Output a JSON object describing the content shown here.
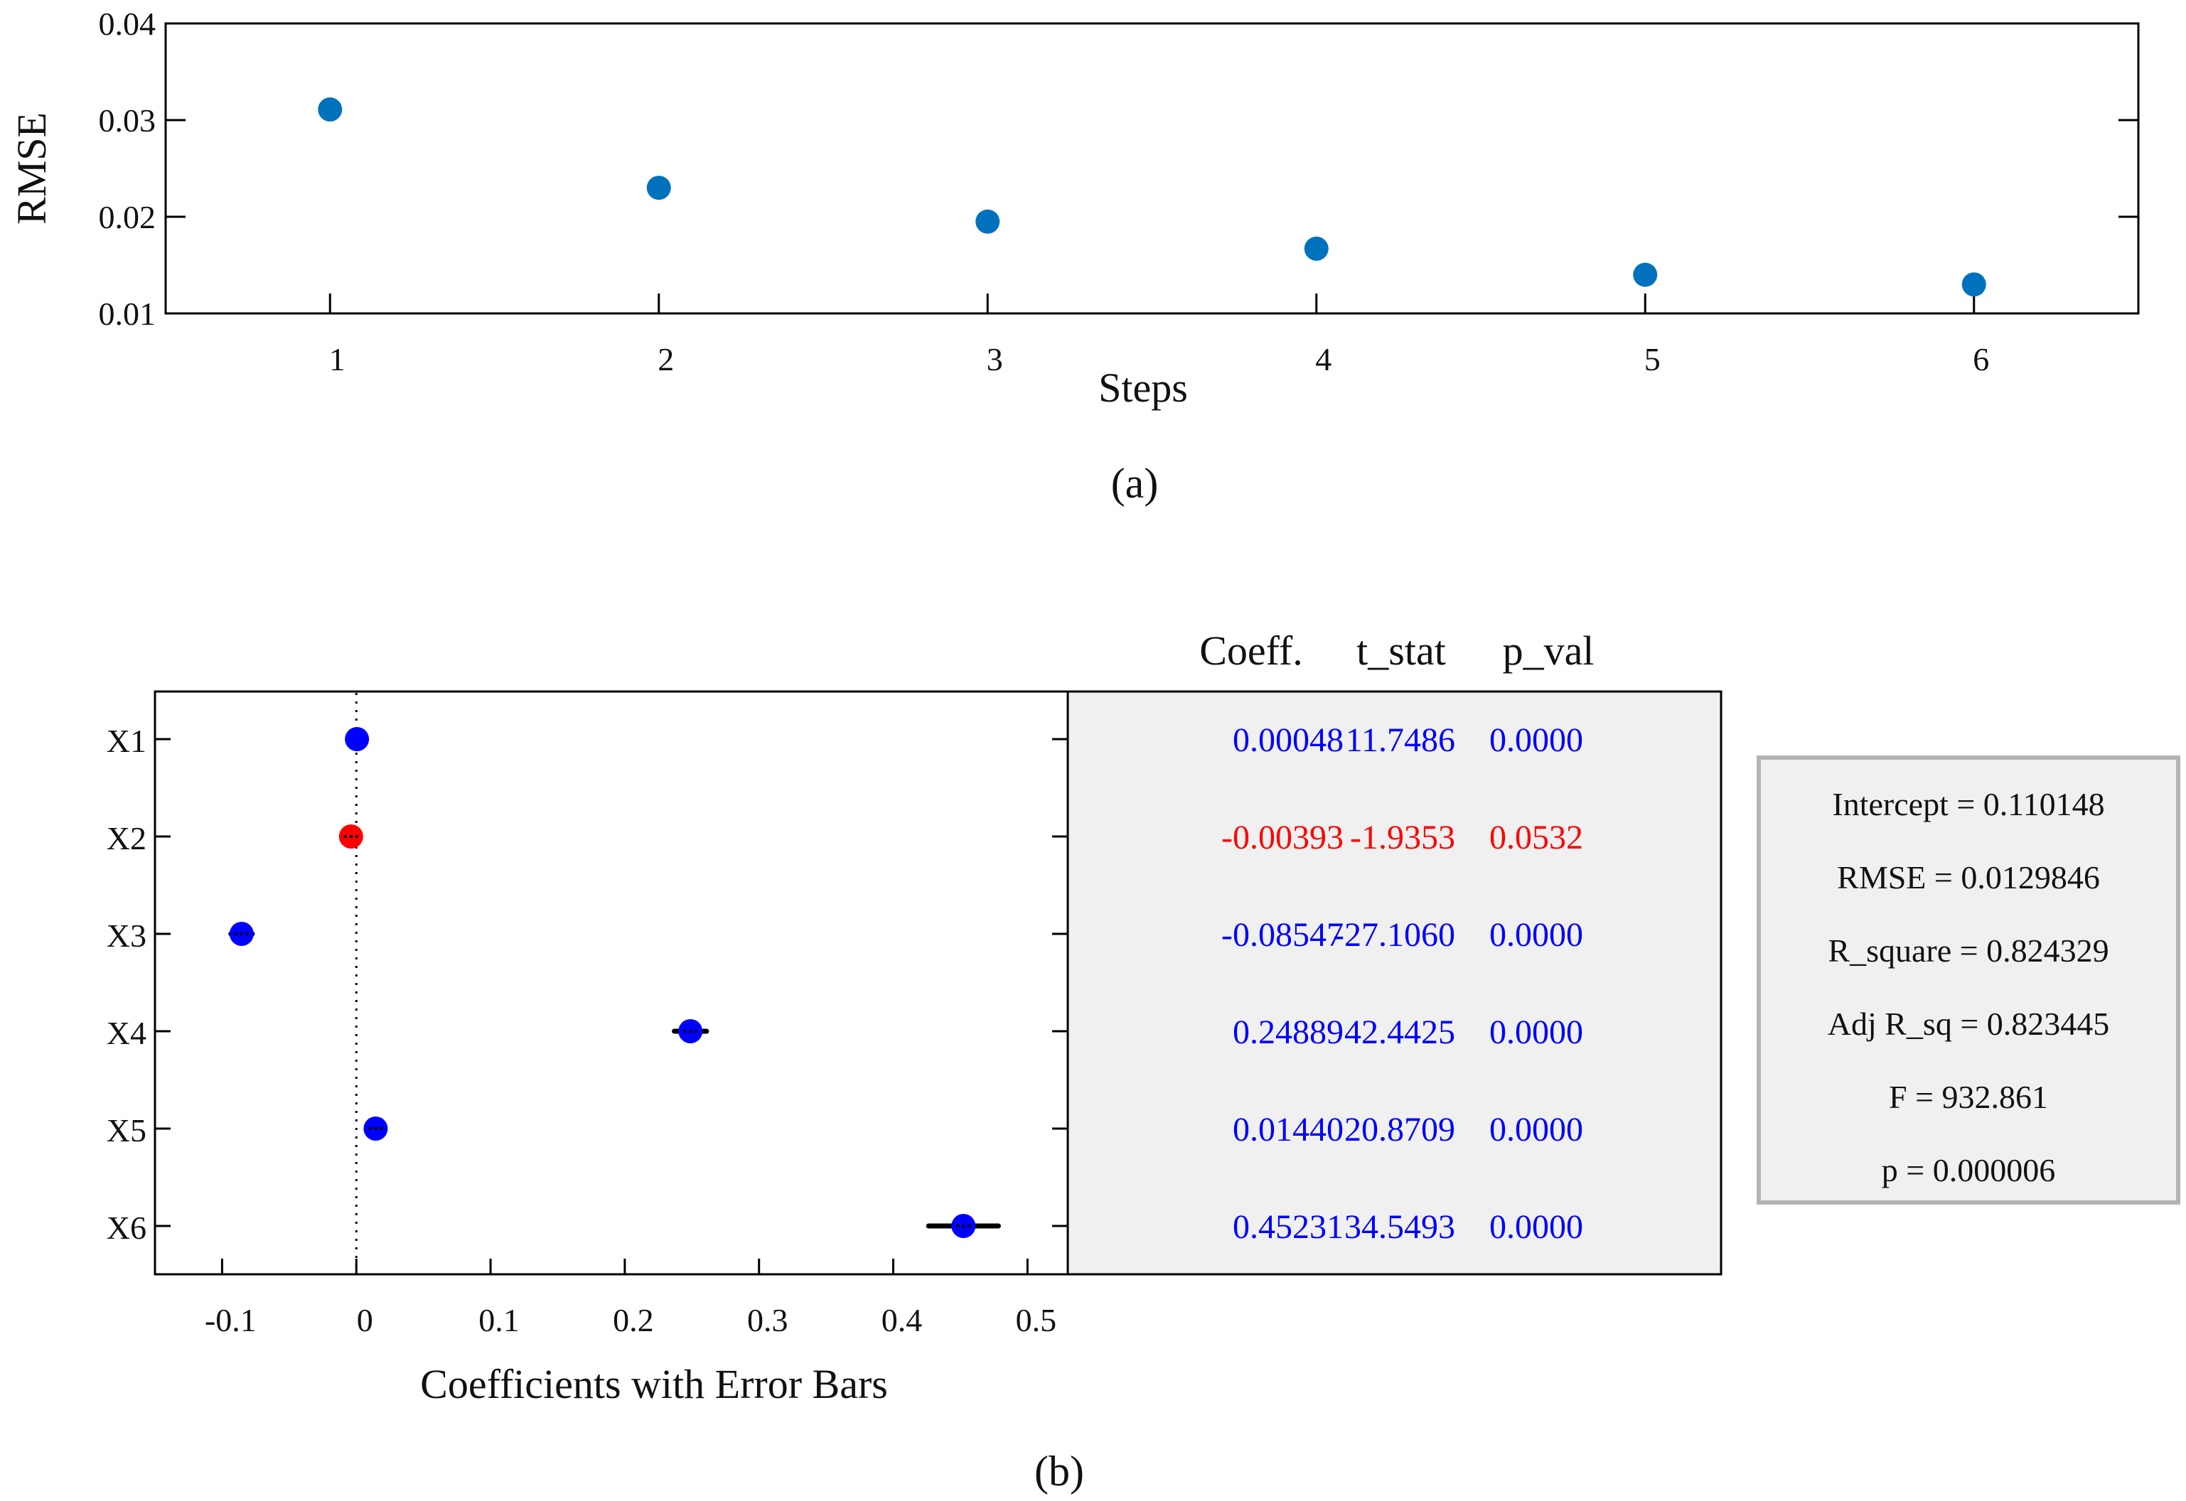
{
  "chart_data": [
    {
      "panel": "(a)",
      "type": "scatter",
      "xlabel": "Steps",
      "ylabel": "RMSE",
      "x": [
        1,
        2,
        3,
        4,
        5,
        6
      ],
      "y": [
        0.0311,
        0.023,
        0.0195,
        0.0167,
        0.014,
        0.013
      ],
      "xlim": [
        0.5,
        6.5
      ],
      "ylim": [
        0.01,
        0.04
      ],
      "xticks": [
        1,
        2,
        3,
        4,
        5,
        6
      ],
      "yticks": [
        0.01,
        0.02,
        0.03,
        0.04
      ],
      "ytick_labels": [
        "0.01",
        "0.02",
        "0.03",
        "0.04"
      ],
      "marker_color": "#0072BD",
      "caption": "(a)"
    },
    {
      "panel": "(b)",
      "type": "scatter",
      "xlabel": "Coefficients with Error Bars",
      "categories": [
        "X1",
        "X2",
        "X3",
        "X4",
        "X5",
        "X6"
      ],
      "coefficients": [
        0.00048,
        -0.00393,
        -0.08547,
        0.24889,
        0.0144,
        0.45231
      ],
      "error_half_width": [
        0.0,
        0.006,
        0.008,
        0.012,
        0.004,
        0.026
      ],
      "significant": [
        true,
        false,
        true,
        true,
        true,
        true
      ],
      "xlim": [
        -0.15,
        0.53
      ],
      "xticks": [
        -0.1,
        0,
        0.1,
        0.2,
        0.3,
        0.4,
        0.5
      ],
      "xtick_labels": [
        "-0.1",
        "0",
        "0.1",
        "0.2",
        "0.3",
        "0.4",
        "0.5"
      ],
      "zero_line": 0,
      "significant_color": "#0000FF",
      "insignificant_color": "#FF0000",
      "table": {
        "headers": [
          "Coeff.",
          "t_stat",
          "p_val"
        ],
        "rows": [
          {
            "coeff": "0.00048",
            "t_stat": "11.7486",
            "p_val": "0.0000"
          },
          {
            "coeff": "-0.00393",
            "t_stat": "-1.9353",
            "p_val": "0.0532"
          },
          {
            "coeff": "-0.08547",
            "t_stat": "-27.1060",
            "p_val": "0.0000"
          },
          {
            "coeff": "0.24889",
            "t_stat": "42.4425",
            "p_val": "0.0000"
          },
          {
            "coeff": "0.01440",
            "t_stat": "20.8709",
            "p_val": "0.0000"
          },
          {
            "coeff": "0.45231",
            "t_stat": "34.5493",
            "p_val": "0.0000"
          }
        ]
      },
      "stats": [
        "Intercept = 0.110148",
        "RMSE = 0.0129846",
        "R_square = 0.824329",
        "Adj R_sq = 0.823445",
        "F = 932.861",
        "p = 0.000006"
      ],
      "caption": "(b)"
    }
  ]
}
